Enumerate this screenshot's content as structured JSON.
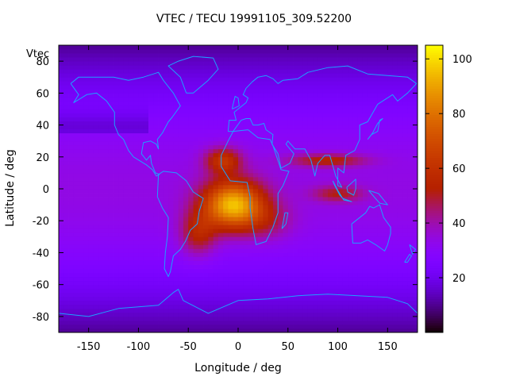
{
  "chart_data": {
    "type": "heatmap",
    "title": "VTEC / TECU 19991105_309.52200",
    "xlabel": "Longitude / deg",
    "ylabel": "Latitude / deg",
    "overlay_label": "Vtec",
    "xlim": [
      -180,
      180
    ],
    "ylim": [
      -90,
      90
    ],
    "x_ticks": [
      -150,
      -100,
      -50,
      0,
      50,
      100,
      150
    ],
    "y_ticks": [
      -80,
      -60,
      -40,
      -20,
      0,
      20,
      40,
      60,
      80
    ],
    "colorbar": {
      "range": [
        0,
        105
      ],
      "ticks": [
        20,
        40,
        60,
        80,
        100
      ],
      "palette": "black-blue-purple-red-orange-yellow"
    },
    "grid": false,
    "coastline_color": "#1ea0ff",
    "features": [
      {
        "lon": -5,
        "lat": -10,
        "amplitude": 62,
        "sigma_lon": 30,
        "sigma_lat": 15
      },
      {
        "lon": -15,
        "lat": 18,
        "amplitude": 28,
        "sigma_lon": 18,
        "sigma_lat": 8
      },
      {
        "lon": -40,
        "lat": -28,
        "amplitude": 22,
        "sigma_lon": 18,
        "sigma_lat": 14
      },
      {
        "lon": 90,
        "lat": 18,
        "amplitude": 22,
        "sigma_lon": 38,
        "sigma_lat": 4
      },
      {
        "lon": 100,
        "lat": -3,
        "amplitude": 18,
        "sigma_lon": 25,
        "sigma_lat": 5
      },
      {
        "lon": 30,
        "lat": -20,
        "amplitude": 12,
        "sigma_lon": 25,
        "sigma_lat": 12
      }
    ],
    "background": {
      "base": 28,
      "polar_dip": 6
    }
  }
}
